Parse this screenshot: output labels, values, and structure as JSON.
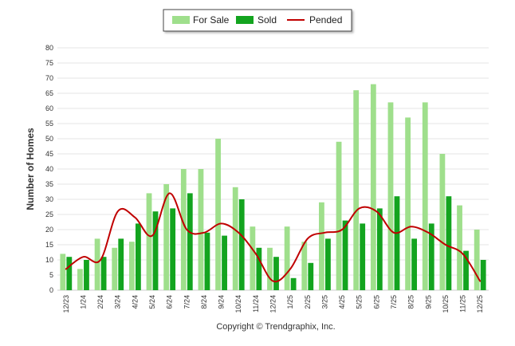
{
  "chart_data": {
    "type": "bar",
    "title": "",
    "xlabel": "",
    "ylabel": "Number of Homes",
    "ylim": [
      0,
      80
    ],
    "yticks": [
      0,
      5,
      10,
      15,
      20,
      25,
      30,
      35,
      40,
      45,
      50,
      55,
      60,
      65,
      70,
      75,
      80
    ],
    "categories": [
      "12/23",
      "1/24",
      "2/24",
      "3/24",
      "4/24",
      "5/24",
      "6/24",
      "7/24",
      "8/24",
      "9/24",
      "10/24",
      "11/24",
      "12/24",
      "1/25",
      "2/25",
      "3/25",
      "4/25",
      "5/25",
      "6/25",
      "7/25",
      "8/25",
      "9/25",
      "10/25",
      "11/25",
      "12/25"
    ],
    "series": [
      {
        "name": "For Sale",
        "kind": "bar",
        "color": "#9fdf8c",
        "values": [
          12,
          7,
          17,
          14,
          16,
          32,
          35,
          40,
          40,
          50,
          34,
          21,
          14,
          21,
          16,
          29,
          49,
          66,
          68,
          62,
          57,
          62,
          45,
          28,
          20
        ]
      },
      {
        "name": "Sold",
        "kind": "bar",
        "color": "#13a41f",
        "values": [
          11,
          10,
          11,
          17,
          22,
          26,
          27,
          32,
          19,
          18,
          30,
          14,
          11,
          4,
          9,
          17,
          23,
          22,
          27,
          31,
          17,
          22,
          31,
          13,
          10
        ]
      },
      {
        "name": "Pended",
        "kind": "line",
        "color": "#c00000",
        "values": [
          7,
          11,
          10,
          26,
          24,
          18,
          32,
          20,
          19,
          22,
          19,
          12,
          3,
          7,
          17,
          19,
          20,
          27,
          26,
          19,
          21,
          19,
          15,
          12,
          3
        ]
      }
    ],
    "legend": {
      "position": "top-center",
      "items": [
        "For Sale",
        "Sold",
        "Pended"
      ]
    },
    "grid": true
  },
  "footer": {
    "credit": "Copyright © Trendgraphix, Inc."
  },
  "colors": {
    "grid": "#e4e4e4",
    "axis": "#cccccc",
    "text": "#333333"
  }
}
